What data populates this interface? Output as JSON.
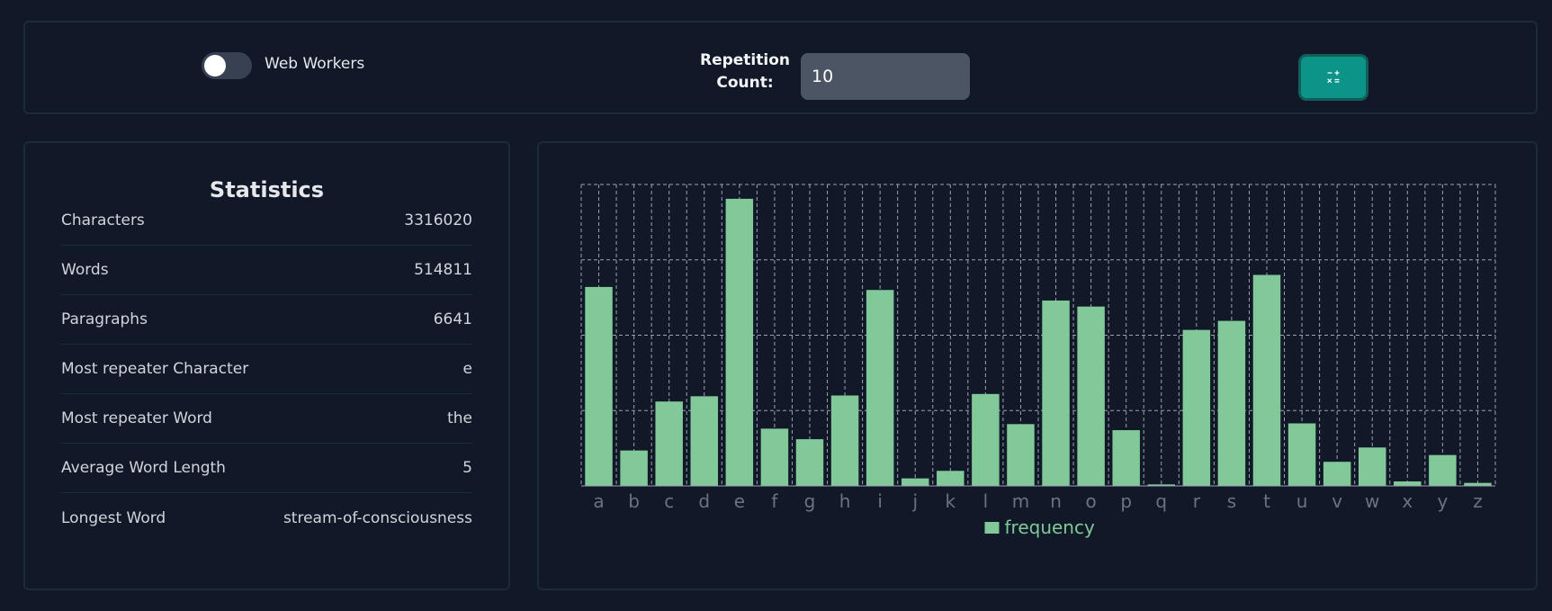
{
  "controls": {
    "toggle_label": "Web Workers",
    "toggle_on": false,
    "repetition_label_line1": "Repetition",
    "repetition_label_line2": "Count:",
    "repetition_value": "10",
    "calculate_icon": "calculator-icon"
  },
  "statistics": {
    "title": "Statistics",
    "rows": [
      {
        "label": "Characters",
        "value": "3316020"
      },
      {
        "label": "Words",
        "value": "514811"
      },
      {
        "label": "Paragraphs",
        "value": "6641"
      },
      {
        "label": "Most repeater Character",
        "value": "e"
      },
      {
        "label": "Most repeater Word",
        "value": "the"
      },
      {
        "label": "Average Word Length",
        "value": "5"
      },
      {
        "label": "Longest Word",
        "value": "stream-of-consciousness"
      }
    ]
  },
  "colors": {
    "background": "#111827",
    "bar": "#82c99a",
    "accent": "#0d9488"
  },
  "chart_data": {
    "type": "bar",
    "categories": [
      "a",
      "b",
      "c",
      "d",
      "e",
      "f",
      "g",
      "h",
      "i",
      "j",
      "k",
      "l",
      "m",
      "n",
      "o",
      "p",
      "q",
      "r",
      "s",
      "t",
      "u",
      "v",
      "w",
      "x",
      "y",
      "z"
    ],
    "series": [
      {
        "name": "frequency",
        "values": [
          264,
          47,
          112,
          119,
          381,
          76,
          62,
          120,
          260,
          10,
          20,
          122,
          82,
          246,
          238,
          74,
          2,
          207,
          219,
          280,
          83,
          32,
          51,
          6,
          41,
          4
        ]
      }
    ],
    "ylim": [
      0,
      400
    ],
    "legend": "frequency",
    "legend_position": "bottom-center",
    "grid": true
  }
}
